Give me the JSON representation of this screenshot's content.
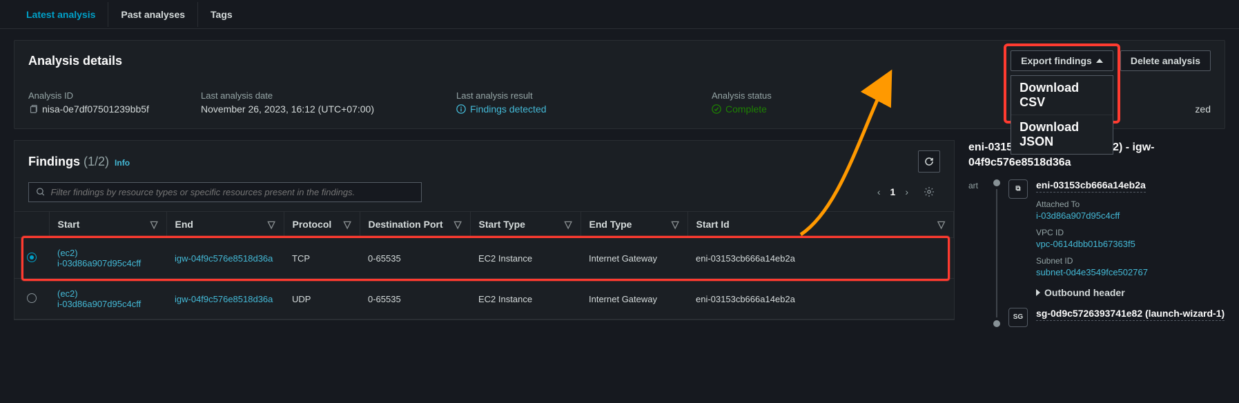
{
  "tabs": {
    "items": [
      "Latest analysis",
      "Past analyses",
      "Tags"
    ],
    "active_index": 0
  },
  "analysis_details": {
    "title": "Analysis details",
    "export_btn": "Export findings",
    "delete_btn": "Delete analysis",
    "dropdown": {
      "csv": "Download CSV",
      "json": "Download JSON"
    },
    "fields": {
      "id_label": "Analysis ID",
      "id_value": "nisa-0e7df07501239bb5f",
      "date_label": "Last analysis date",
      "date_value": "November 26, 2023, 16:12 (UTC+07:00)",
      "result_label": "Last analysis result",
      "result_value": "Findings detected",
      "status_label": "Analysis status",
      "status_value": "Complete",
      "trailing_fragment": "zed"
    }
  },
  "findings": {
    "title": "Findings",
    "count": "(1/2)",
    "info": "Info",
    "filter_placeholder": "Filter findings by resource types or specific resources present in the findings.",
    "page": "1",
    "columns": [
      "Start",
      "End",
      "Protocol",
      "Destination Port",
      "Start Type",
      "End Type",
      "Start Id"
    ],
    "rows": [
      {
        "selected": true,
        "start_prefix": "(ec2)",
        "start_link": "i-03d86a907d95c4cff",
        "end_link": "igw-04f9c576e8518d36a",
        "protocol": "TCP",
        "port": "0-65535",
        "start_type": "EC2 Instance",
        "end_type": "Internet Gateway",
        "start_id": "eni-03153cb666a14eb2a"
      },
      {
        "selected": false,
        "start_prefix": "(ec2)",
        "start_link": "i-03d86a907d95c4cff",
        "end_link": "igw-04f9c576e8518d36a",
        "protocol": "UDP",
        "port": "0-65535",
        "start_type": "EC2 Instance",
        "end_type": "Internet Gateway",
        "start_id": "eni-03153cb666a14eb2a"
      }
    ]
  },
  "side": {
    "title": "eni-03153cb666a14eb2a (ec2) - igw-04f9c576e8518d36a",
    "start_label": "art",
    "node1_icon": "⧉",
    "node1_title": "eni-03153cb666a14eb2a",
    "attached_k": "Attached To",
    "attached_v": "i-03d86a907d95c4cff",
    "vpc_k": "VPC ID",
    "vpc_v": "vpc-0614dbb01b67363f5",
    "subnet_k": "Subnet ID",
    "subnet_v": "subnet-0d4e3549fce502767",
    "outbound": "Outbound header",
    "node2_icon": "SG",
    "node2_title": "sg-0d9c5726393741e82 (launch-wizard-1)"
  },
  "annotations": {
    "highlight_row_index": 0,
    "highlight_color": "#ff3b30",
    "arrow_color": "#ff9900"
  }
}
